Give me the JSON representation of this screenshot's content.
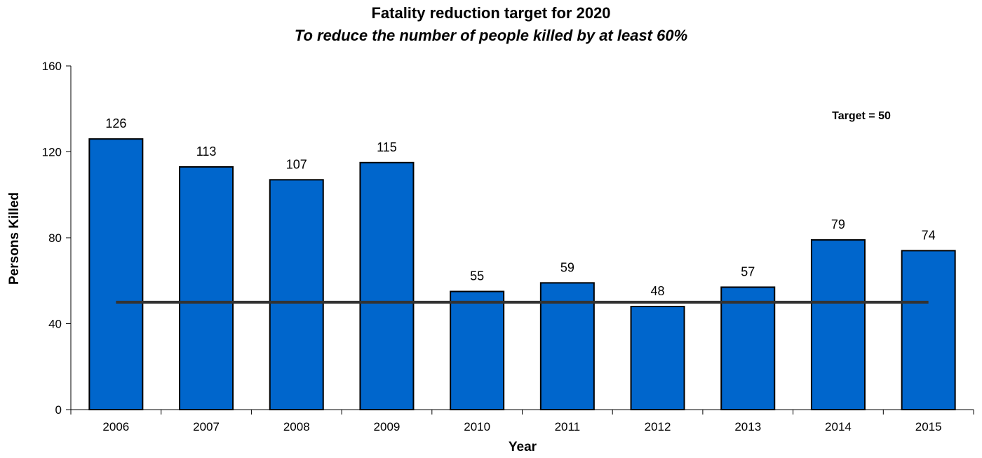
{
  "chart_data": {
    "type": "bar",
    "title": "Fatality reduction target for 2020",
    "subtitle": "To reduce the number of people killed by at least 60%",
    "xlabel": "Year",
    "ylabel": "Persons Killed",
    "categories": [
      "2006",
      "2007",
      "2008",
      "2009",
      "2010",
      "2011",
      "2012",
      "2013",
      "2014",
      "2015"
    ],
    "values": [
      126,
      113,
      107,
      115,
      55,
      59,
      48,
      57,
      79,
      74
    ],
    "ylim": [
      0,
      160
    ],
    "yticks": [
      0,
      40,
      80,
      120,
      160
    ],
    "grid": false,
    "bar_color": "#0066CC",
    "target_line": {
      "value": 50,
      "label": "Target = 50",
      "color": "#333333"
    }
  }
}
